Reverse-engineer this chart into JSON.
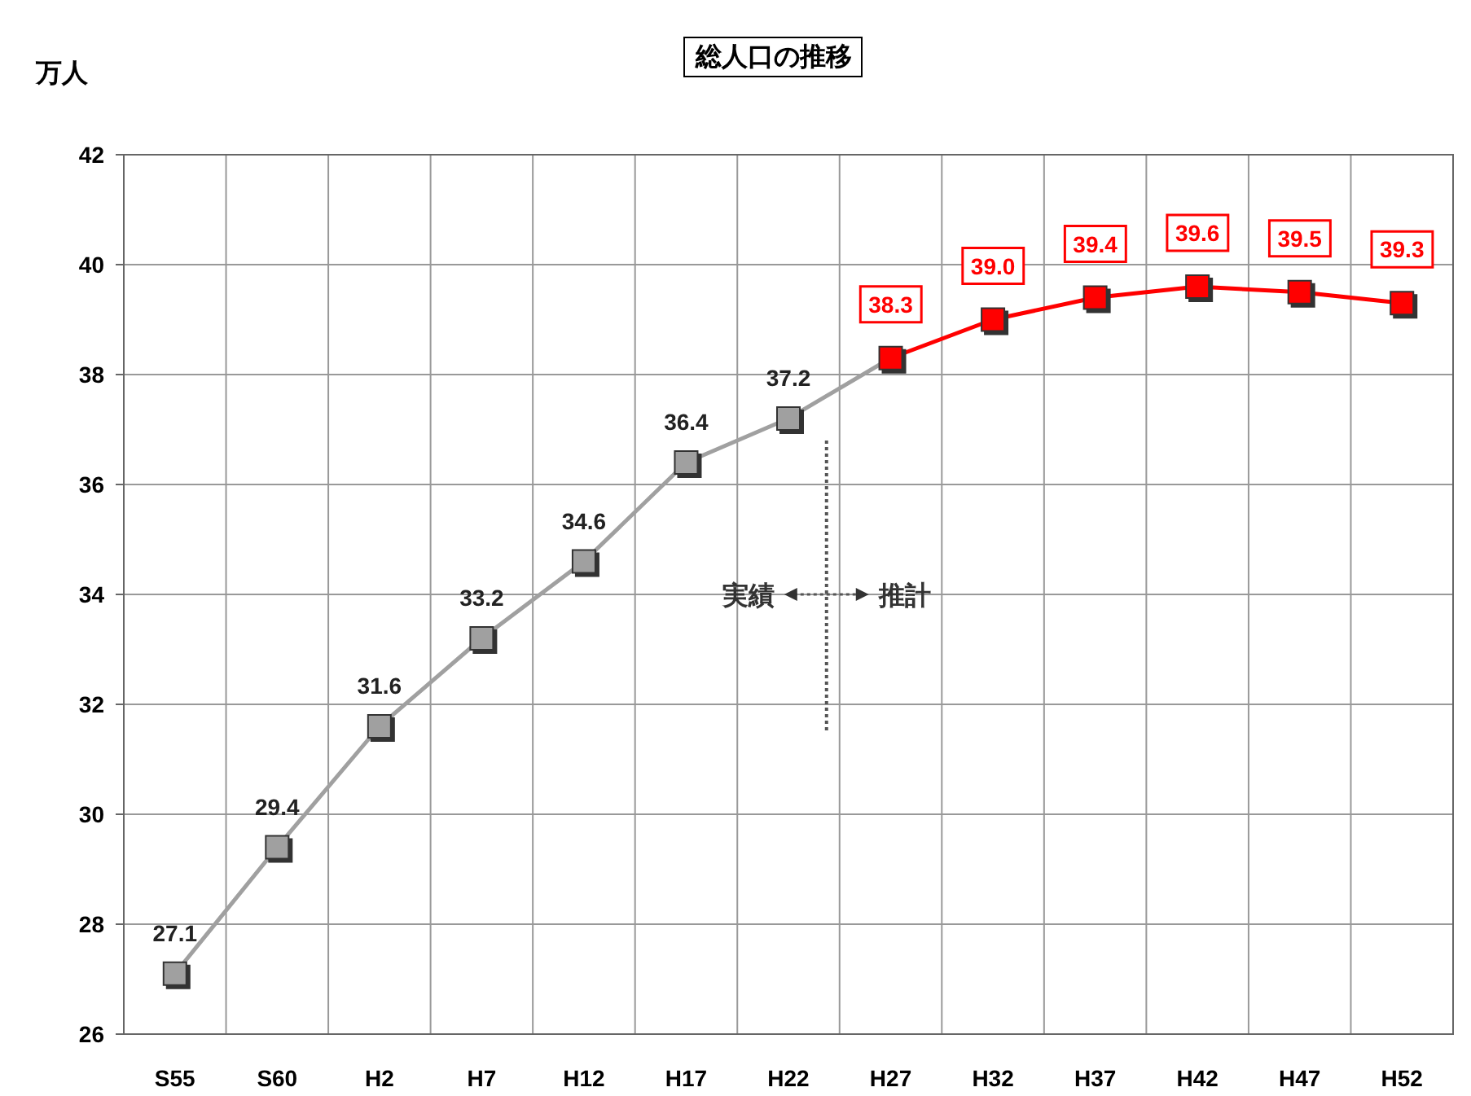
{
  "chart_data": {
    "type": "line",
    "title": "総人口の推移",
    "ylabel": "万人",
    "categories": [
      "S55",
      "S60",
      "H2",
      "H7",
      "H12",
      "H17",
      "H22",
      "H27",
      "H32",
      "H37",
      "H42",
      "H47",
      "H52"
    ],
    "series": [
      {
        "color": "#a0a0a0",
        "values": [
          27.1,
          29.4,
          31.6,
          33.2,
          34.6,
          36.4,
          37.2,
          null,
          null,
          null,
          null,
          null,
          null
        ],
        "value_labels": [
          "27.1",
          "29.4",
          "31.6",
          "33.2",
          "34.6",
          "36.4",
          "37.2",
          null,
          null,
          null,
          null,
          null,
          null
        ]
      },
      {
        "color": "#ff0000",
        "values": [
          null,
          null,
          null,
          null,
          null,
          null,
          null,
          38.3,
          39.0,
          39.4,
          39.6,
          39.5,
          39.3
        ],
        "value_labels": [
          null,
          null,
          null,
          null,
          null,
          null,
          null,
          "38.3",
          "39.0",
          "39.4",
          "39.6",
          "39.5",
          "39.3"
        ]
      }
    ],
    "ylim": [
      26,
      42
    ],
    "yticks": [
      26,
      28,
      30,
      32,
      34,
      36,
      38,
      40,
      42
    ],
    "grid": true,
    "marker": "square",
    "line_style": "solid",
    "annotations": [
      "実績",
      "推計"
    ]
  }
}
